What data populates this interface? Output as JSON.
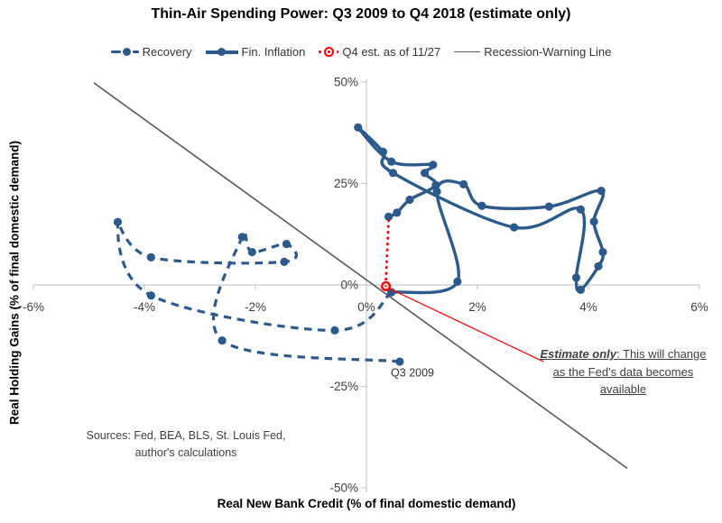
{
  "title": "Thin-Air Spending Power: Q3 2009 to Q4 2018 (estimate only)",
  "legend": {
    "recovery": "Recovery",
    "fin_inflation": "Fin. Inflation",
    "q4_estimate": "Q4 est. as of 11/27",
    "recession_line": "Recession-Warning Line"
  },
  "axes": {
    "x": {
      "title": "Real New Bank Credit (% of final domestic demand)",
      "tick_labels": [
        "-6%",
        "-4%",
        "-2%",
        "0%",
        "2%",
        "4%",
        "6%"
      ],
      "tick_values": [
        -6,
        -4,
        -2,
        0,
        2,
        4,
        6
      ],
      "range": [
        -6,
        6
      ]
    },
    "y": {
      "title": "Real Holding Gains (% of final domestic demand)",
      "tick_labels": [
        "50%",
        "25%",
        "0%",
        "-25%",
        "-50%"
      ],
      "tick_values": [
        50,
        25,
        0,
        -25,
        -50
      ],
      "range": [
        -50,
        50
      ]
    }
  },
  "colors": {
    "series_blue": "#2d5a8d",
    "estimate_red": "#ff0000",
    "recession_gray": "#595959",
    "axis_gray": "#bfbfbf",
    "text_dark": "#404040",
    "label_black": "#333333"
  },
  "chart_data": {
    "type": "scatter",
    "grid": false,
    "legend_position": "top",
    "series": [
      {
        "name": "Recovery",
        "style": "dashed",
        "color_key": "series_blue",
        "markers": true,
        "points": [
          [
            0.6,
            -18.9
          ],
          [
            -2.6,
            -13.7
          ],
          [
            -2.24,
            11.8
          ],
          [
            -2.06,
            8.1
          ],
          [
            -1.44,
            10.1
          ],
          [
            -1.48,
            5.7
          ],
          [
            -3.88,
            6.8
          ],
          [
            -4.48,
            15.5
          ],
          [
            -3.88,
            -2.6
          ],
          [
            -0.57,
            -11.2
          ],
          [
            0.45,
            -1.8
          ]
        ]
      },
      {
        "name": "Fin. Inflation",
        "style": "solid",
        "color_key": "series_blue",
        "markers": true,
        "points": [
          [
            0.45,
            -1.8
          ],
          [
            1.64,
            0.8
          ],
          [
            1.27,
            23.0
          ],
          [
            1.75,
            24.8
          ],
          [
            2.08,
            19.5
          ],
          [
            3.29,
            19.3
          ],
          [
            4.23,
            23.2
          ],
          [
            4.1,
            15.6
          ],
          [
            4.26,
            8.1
          ],
          [
            4.18,
            4.6
          ],
          [
            3.86,
            -1.2
          ],
          [
            3.78,
            1.8
          ],
          [
            3.86,
            18.6
          ],
          [
            2.66,
            14.2
          ],
          [
            0.48,
            27.6
          ],
          [
            0.3,
            32.8
          ],
          [
            -0.15,
            38.8
          ],
          [
            0.45,
            30.4
          ],
          [
            1.2,
            29.6
          ],
          [
            1.05,
            27.6
          ],
          [
            1.25,
            24.6
          ],
          [
            0.78,
            21.0
          ],
          [
            0.55,
            17.8
          ],
          [
            0.4,
            16.8
          ]
        ]
      },
      {
        "name": "Q4 est. as of 11/27",
        "style": "dotted",
        "color_key": "estimate_red",
        "points": [
          [
            0.4,
            15.9
          ],
          [
            0.35,
            -0.3
          ]
        ]
      },
      {
        "name": "Recession-Warning Line",
        "style": "line",
        "color_key": "recession_gray",
        "points": [
          [
            -4.91,
            49.8
          ],
          [
            4.7,
            -45.2
          ]
        ]
      }
    ],
    "point_label": {
      "text": "Q3 2009",
      "x": 0.83,
      "y": -22.5
    },
    "leader_line": {
      "from": [
        0.4,
        -0.8
      ],
      "to": [
        3.19,
        -18.9
      ]
    }
  },
  "annotation": {
    "emphasis": "Estimate only",
    "rest": ": This will change as the Fed's data becomes available"
  },
  "sources": {
    "line1": "Sources: Fed, BEA, BLS, St. Louis Fed,",
    "line2": "author's calculations"
  }
}
